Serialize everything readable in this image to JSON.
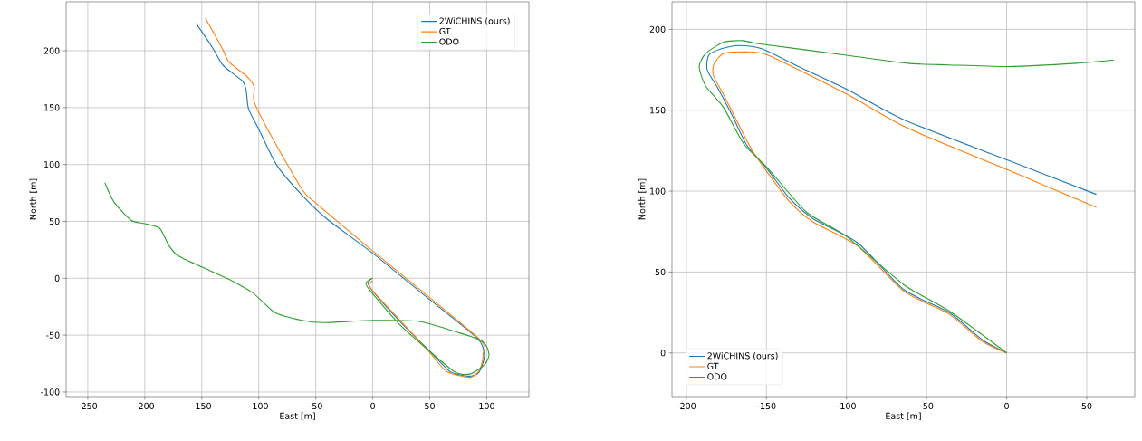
{
  "chart_data": [
    {
      "type": "line",
      "xlabel": "East [m]",
      "ylabel": "North [m]",
      "xlim": [
        -269,
        137
      ],
      "ylim": [
        -104,
        243
      ],
      "xticks": [
        -250,
        -200,
        -150,
        -100,
        -50,
        0,
        50,
        100
      ],
      "yticks": [
        -100,
        -50,
        0,
        50,
        100,
        150,
        200
      ],
      "grid": true,
      "legend": "top right",
      "series": [
        {
          "name": "2WiCHINS (ours)",
          "color": "#1f77b4",
          "x": [
            -155,
            -142,
            -132,
            -124,
            -114,
            -111,
            -109,
            -100,
            -84,
            -62,
            -40,
            0,
            49,
            92,
            98,
            93,
            84,
            68,
            49,
            23,
            -1,
            -4,
            -1
          ],
          "values": [
            224,
            205,
            188,
            181,
            173,
            165,
            149,
            131,
            99,
            73,
            52,
            22,
            -18,
            -53,
            -68,
            -83,
            -86,
            -82,
            -63,
            -37,
            -10,
            -4,
            0
          ]
        },
        {
          "name": "GT",
          "color": "#ff7f0e",
          "x": [
            -147,
            -132,
            -126,
            -110,
            -104,
            -104,
            -89,
            -62,
            -51,
            0,
            92,
            97,
            94,
            86,
            65,
            49,
            23,
            -1,
            -3,
            0
          ],
          "values": [
            229,
            202,
            190,
            177,
            168,
            155,
            125,
            78,
            67,
            24,
            -52,
            -66,
            -80,
            -87,
            -82,
            -64,
            -36,
            -10,
            -5,
            -2
          ]
        },
        {
          "name": "ODO",
          "color": "#2ca02c",
          "x": [
            -235,
            -227,
            -212,
            -200,
            -187,
            -179,
            -171,
            -150,
            -126,
            -105,
            -86,
            -62,
            -43,
            1,
            41,
            76,
            94,
            100,
            102,
            98,
            86,
            73,
            52,
            23,
            -3,
            -6,
            0
          ],
          "values": [
            84,
            67,
            51,
            48,
            44,
            29,
            20,
            10,
            -1,
            -13,
            -30,
            -37,
            -39,
            -37,
            -38,
            -48,
            -54,
            -60,
            -68,
            -76,
            -84,
            -83,
            -66,
            -40,
            -10,
            -4,
            0
          ]
        }
      ]
    },
    {
      "type": "line",
      "xlabel": "East [m]",
      "ylabel": "North [m]",
      "xlim": [
        -209,
        80
      ],
      "ylim": [
        -27,
        217
      ],
      "xticks": [
        -200,
        -150,
        -100,
        -50,
        0,
        50
      ],
      "yticks": [
        0,
        50,
        100,
        150,
        200
      ],
      "grid": true,
      "legend": "bottom left",
      "series": [
        {
          "name": "2WiCHINS (ours)",
          "color": "#1f77b4",
          "x": [
            0,
            -15,
            -36,
            -64,
            -93,
            -121,
            -136,
            -149,
            -162,
            -171,
            -180,
            -187,
            -186,
            -178,
            -167,
            -153,
            -130,
            -100,
            -64,
            1,
            56
          ],
          "values": [
            0,
            8,
            25,
            39,
            68,
            83,
            96,
            113,
            128,
            146,
            163,
            175,
            184,
            188,
            190,
            188,
            177,
            163,
            144,
            119,
            98
          ]
        },
        {
          "name": "GT",
          "color": "#ff7f0e",
          "x": [
            0,
            -15,
            -36,
            -64,
            -93,
            -121,
            -136,
            -149,
            -160,
            -177,
            -183,
            -183,
            -177,
            -164,
            -149,
            -100,
            -62,
            1,
            56
          ],
          "values": [
            0,
            7,
            24,
            38,
            66,
            81,
            94,
            111,
            127,
            160,
            171,
            178,
            185,
            186,
            184,
            160,
            139,
            113,
            90
          ]
        },
        {
          "name": "ODO",
          "color": "#2ca02c",
          "x": [
            0,
            -36,
            -64,
            -100,
            -125,
            -149,
            -164,
            -177,
            -188,
            -192,
            -188,
            -177,
            -165,
            -154,
            -100,
            -62,
            -36,
            1,
            44,
            67
          ],
          "values": [
            0,
            26,
            42,
            72,
            87,
            114,
            129,
            152,
            165,
            177,
            185,
            192,
            193,
            191,
            184,
            179,
            178,
            177,
            179,
            181
          ]
        }
      ]
    }
  ]
}
